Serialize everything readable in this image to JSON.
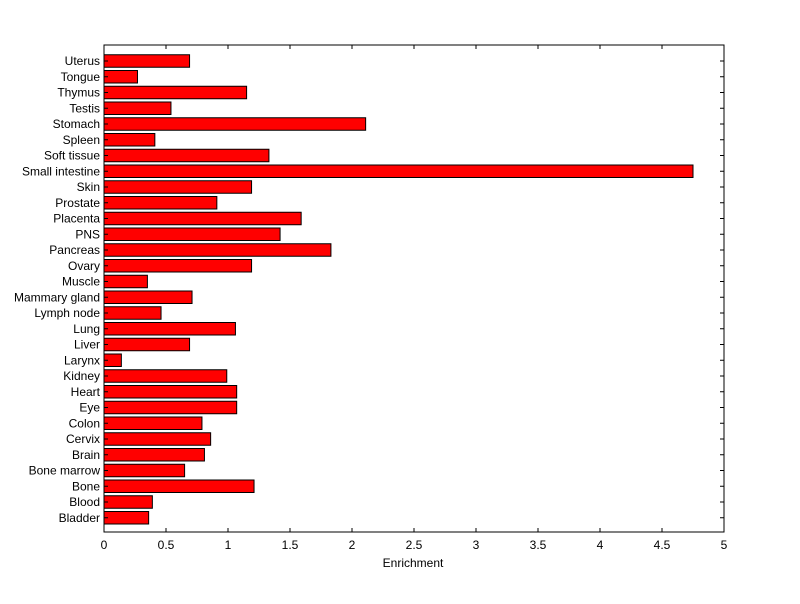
{
  "chart_data": {
    "type": "bar",
    "orientation": "horizontal",
    "title": "",
    "xlabel": "Enrichment",
    "ylabel": "",
    "xlim": [
      0,
      5
    ],
    "xticks": [
      "0",
      "0.5",
      "1",
      "1.5",
      "2",
      "2.5",
      "3",
      "3.5",
      "4",
      "4.5",
      "5"
    ],
    "grid": false,
    "legend": "none",
    "bar_color": "#ff0000",
    "bar_edge_color": "#000000",
    "categories": [
      "Uterus",
      "Tongue",
      "Thymus",
      "Testis",
      "Stomach",
      "Spleen",
      "Soft tissue",
      "Small intestine",
      "Skin",
      "Prostate",
      "Placenta",
      "PNS",
      "Pancreas",
      "Ovary",
      "Muscle",
      "Mammary gland",
      "Lymph node",
      "Lung",
      "Liver",
      "Larynx",
      "Kidney",
      "Heart",
      "Eye",
      "Colon",
      "Cervix",
      "Brain",
      "Bone marrow",
      "Bone",
      "Blood",
      "Bladder"
    ],
    "values": [
      0.69,
      0.27,
      1.15,
      0.54,
      2.11,
      0.41,
      1.33,
      4.75,
      1.19,
      0.91,
      1.59,
      1.42,
      1.83,
      1.19,
      0.35,
      0.71,
      0.46,
      1.06,
      0.69,
      0.14,
      0.99,
      1.07,
      1.07,
      0.79,
      0.86,
      0.81,
      0.65,
      1.21,
      0.39,
      0.36
    ]
  }
}
